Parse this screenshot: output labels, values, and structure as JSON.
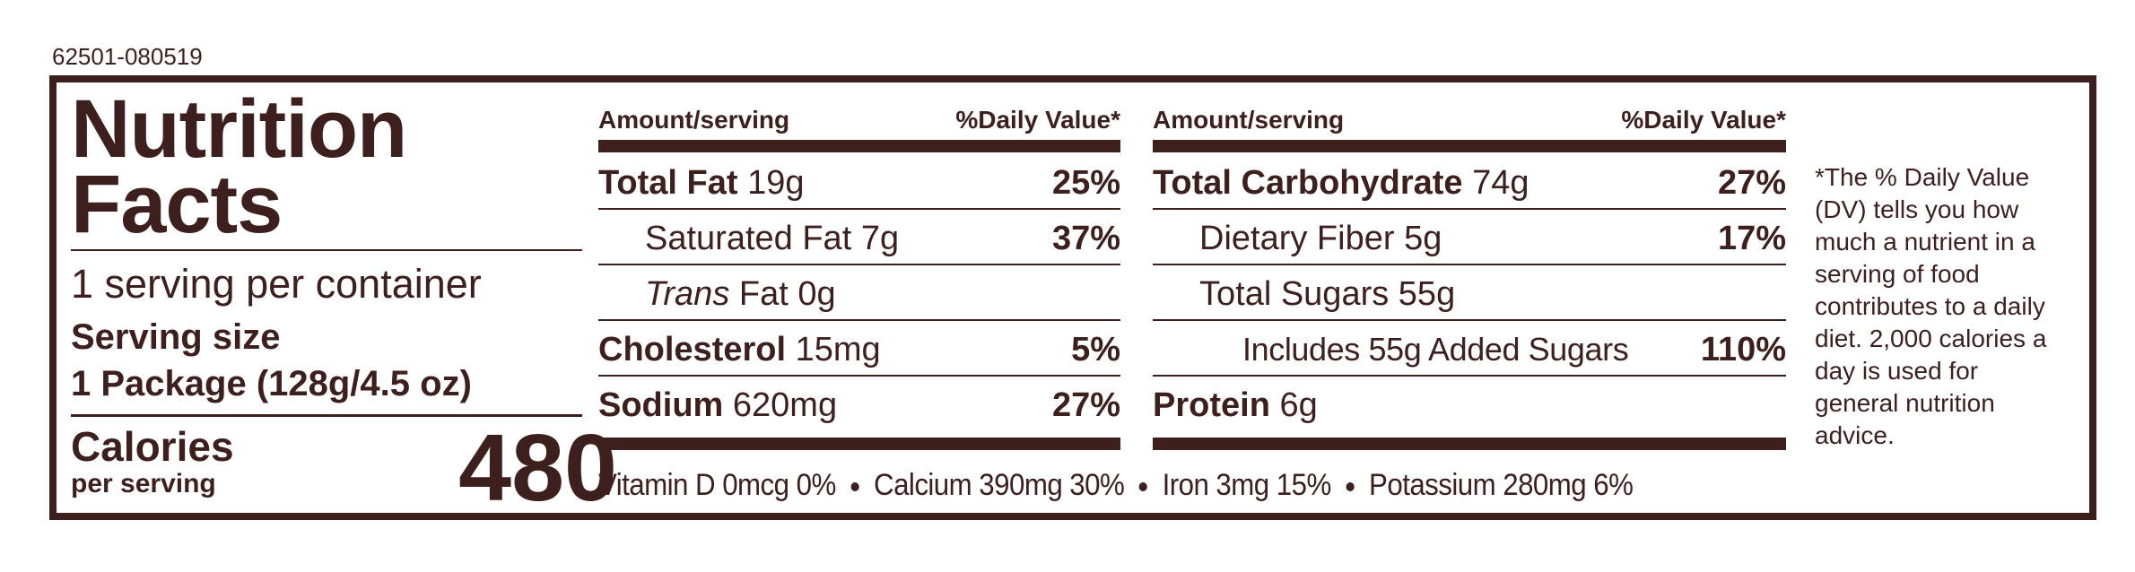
{
  "label_code": "62501-080519",
  "title_line1": "Nutrition",
  "title_line2": "Facts",
  "servings_per_container": "1 serving per container",
  "serving_size_label": "Serving size",
  "serving_size_value": "1 Package (128g/4.5 oz)",
  "calories_label": "Calories",
  "calories_sub": "per serving",
  "calories_value": "480",
  "left_column": {
    "header_amount": "Amount/serving",
    "header_dv": "%Daily Value*",
    "rows": [
      {
        "name": "Total Fat",
        "amount": "19g",
        "dv": "25%"
      },
      {
        "name": "Saturated Fat",
        "amount": "7g",
        "dv": "37%"
      },
      {
        "name": "Trans",
        "amount": "Fat 0g",
        "dv": ""
      },
      {
        "name": "Cholesterol",
        "amount": "15mg",
        "dv": "5%"
      },
      {
        "name": "Sodium",
        "amount": "620mg",
        "dv": "27%"
      }
    ]
  },
  "right_column": {
    "header_amount": "Amount/serving",
    "header_dv": "%Daily Value*",
    "rows": [
      {
        "name": "Total Carbohydrate",
        "amount": "74g",
        "dv": "27%"
      },
      {
        "name": "Dietary Fiber",
        "amount": "5g",
        "dv": "17%"
      },
      {
        "name": "Total Sugars",
        "amount": "55g",
        "dv": ""
      },
      {
        "name": "Includes 55g Added Sugars",
        "amount": "",
        "dv": "110%"
      },
      {
        "name": "Protein",
        "amount": "6g",
        "dv": ""
      }
    ]
  },
  "vitamins": [
    "Vitamin D 0mcg 0%",
    "Calcium 390mg 30%",
    "Iron 3mg 15%",
    "Potassium 280mg 6%"
  ],
  "footnote": "*The % Daily Value (DV) tells you how much a nutrient in a serving of food contributes to a daily diet. 2,000 calories a day is used for general nutrition advice.",
  "colors": {
    "ink": "#3d1f1d",
    "background": "#ffffff"
  }
}
